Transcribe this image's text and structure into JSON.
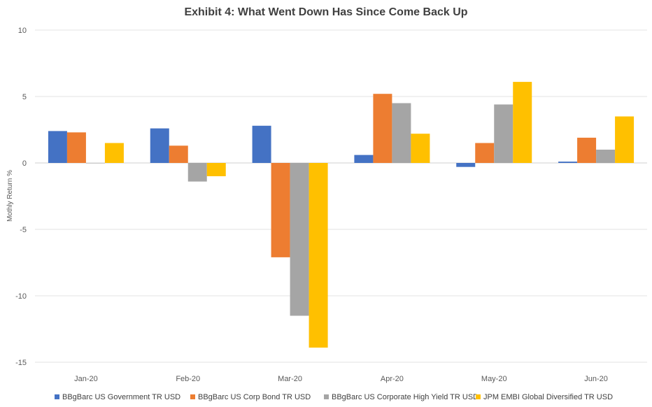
{
  "chart_data": {
    "type": "bar",
    "title": "Exhibit 4: What Went Down Has Since Come Back Up",
    "ylabel": "Mothly Return %",
    "xlabel": "",
    "ylim": [
      -15,
      10
    ],
    "yticks": [
      10,
      5,
      0,
      -5,
      -10,
      -15
    ],
    "grid": true,
    "legend_position": "bottom",
    "categories": [
      "Jan-20",
      "Feb-20",
      "Mar-20",
      "Apr-20",
      "May-20",
      "Jun-20"
    ],
    "series": [
      {
        "name": "BBgBarc US Government TR USD",
        "color": "#4472c4",
        "values": [
          2.4,
          2.6,
          2.8,
          0.6,
          -0.3,
          0.1
        ]
      },
      {
        "name": "BBgBarc US Corp Bond TR USD",
        "color": "#ed7d31",
        "values": [
          2.3,
          1.3,
          -7.1,
          5.2,
          1.5,
          1.9
        ]
      },
      {
        "name": "BBgBarc US Corporate High Yield TR USD",
        "color": "#a5a5a5",
        "values": [
          0.0,
          -1.4,
          -11.5,
          4.5,
          4.4,
          1.0
        ]
      },
      {
        "name": "JPM EMBI Global Diversified TR USD",
        "color": "#ffc000",
        "values": [
          1.5,
          -1.0,
          -13.9,
          2.2,
          6.1,
          3.5
        ]
      }
    ]
  }
}
